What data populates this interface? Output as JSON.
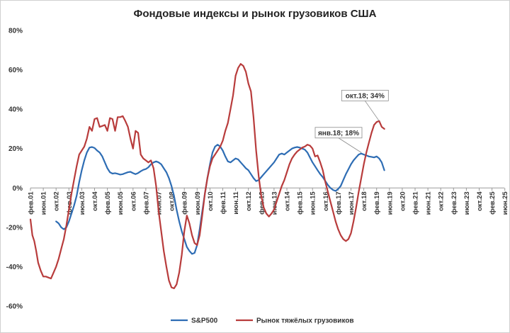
{
  "chart_data": {
    "type": "line",
    "title": "Фондовые индексы и рынок грузовиков США",
    "xlabel": "",
    "ylabel": "",
    "ylim": [
      -60,
      80
    ],
    "yticks": [
      "80%",
      "60%",
      "40%",
      "20%",
      "0%",
      "-20%",
      "-40%",
      "-60%"
    ],
    "yticks_values": [
      80,
      60,
      40,
      20,
      0,
      -20,
      -40,
      -60
    ],
    "grid": false,
    "legend_position": "bottom",
    "x_tick_labels": [
      "фев.01",
      "июн.01",
      "окт.02",
      "фев.03",
      "июн.03",
      "окт.04",
      "фев.05",
      "июн.05",
      "окт.06",
      "фев.07",
      "июн.07",
      "окт.08",
      "фев.09",
      "июн.09",
      "окт.10",
      "фев.11",
      "июн.11",
      "окт.12",
      "фев.13",
      "июн.13",
      "окт.14",
      "фев.15",
      "июн.15",
      "окт.16",
      "фев.17",
      "июн.17",
      "окт.18",
      "фев.19",
      "июн.19",
      "окт.20",
      "фев.21",
      "июн.21",
      "окт.22",
      "фев.23",
      "июн.23",
      "окт.24",
      "фев.25",
      "июн.25"
    ],
    "series": [
      {
        "name": "S&P500",
        "color": "#2E6DB4",
        "points": [
          [
            2.0,
            -17
          ],
          [
            2.2,
            -18
          ],
          [
            2.4,
            -20
          ],
          [
            2.6,
            -21
          ],
          [
            2.8,
            -20
          ],
          [
            3.0,
            -17
          ],
          [
            3.2,
            -13
          ],
          [
            3.4,
            -9
          ],
          [
            3.6,
            -4
          ],
          [
            3.8,
            3
          ],
          [
            4.0,
            9
          ],
          [
            4.2,
            14
          ],
          [
            4.4,
            18
          ],
          [
            4.6,
            20.5
          ],
          [
            4.8,
            20.8
          ],
          [
            5.0,
            20.3
          ],
          [
            5.2,
            19
          ],
          [
            5.4,
            18
          ],
          [
            5.6,
            16
          ],
          [
            5.8,
            13
          ],
          [
            6.0,
            10
          ],
          [
            6.2,
            8
          ],
          [
            6.4,
            7.3
          ],
          [
            6.6,
            7.5
          ],
          [
            6.8,
            7.2
          ],
          [
            7.0,
            6.8
          ],
          [
            7.2,
            7
          ],
          [
            7.4,
            7.5
          ],
          [
            7.6,
            8
          ],
          [
            7.8,
            8.2
          ],
          [
            8.0,
            7.5
          ],
          [
            8.2,
            7
          ],
          [
            8.4,
            7.6
          ],
          [
            8.6,
            8.5
          ],
          [
            8.8,
            9.2
          ],
          [
            9.0,
            9.6
          ],
          [
            9.2,
            10.5
          ],
          [
            9.4,
            12
          ],
          [
            9.6,
            13
          ],
          [
            9.8,
            13.5
          ],
          [
            10.0,
            13
          ],
          [
            10.2,
            12
          ],
          [
            10.4,
            10
          ],
          [
            10.6,
            8
          ],
          [
            10.8,
            5
          ],
          [
            11.0,
            1
          ],
          [
            11.2,
            -4
          ],
          [
            11.4,
            -11
          ],
          [
            11.6,
            -17
          ],
          [
            11.8,
            -22
          ],
          [
            12.0,
            -26
          ],
          [
            12.2,
            -30
          ],
          [
            12.4,
            -32
          ],
          [
            12.6,
            -33.5
          ],
          [
            12.8,
            -33
          ],
          [
            13.0,
            -29
          ],
          [
            13.2,
            -21
          ],
          [
            13.4,
            -12
          ],
          [
            13.6,
            -3
          ],
          [
            13.8,
            5
          ],
          [
            14.0,
            12
          ],
          [
            14.2,
            18
          ],
          [
            14.4,
            21
          ],
          [
            14.6,
            22
          ],
          [
            14.8,
            21
          ],
          [
            15.0,
            19
          ],
          [
            15.2,
            16
          ],
          [
            15.4,
            13.5
          ],
          [
            15.6,
            13
          ],
          [
            15.8,
            14
          ],
          [
            16.0,
            15
          ],
          [
            16.2,
            14.5
          ],
          [
            16.4,
            13
          ],
          [
            16.6,
            11.5
          ],
          [
            16.8,
            10
          ],
          [
            17.0,
            9
          ],
          [
            17.2,
            7
          ],
          [
            17.4,
            5
          ],
          [
            17.6,
            3.5
          ],
          [
            17.8,
            4
          ],
          [
            18.0,
            5.5
          ],
          [
            18.2,
            7
          ],
          [
            18.4,
            8.5
          ],
          [
            18.6,
            10
          ],
          [
            18.8,
            11.5
          ],
          [
            19.0,
            13
          ],
          [
            19.2,
            15
          ],
          [
            19.4,
            17
          ],
          [
            19.6,
            17.5
          ],
          [
            19.8,
            17
          ],
          [
            20.0,
            18
          ],
          [
            20.2,
            19
          ],
          [
            20.4,
            20
          ],
          [
            20.6,
            20.5
          ],
          [
            20.8,
            20.8
          ],
          [
            21.0,
            20.5
          ],
          [
            21.2,
            20
          ],
          [
            21.4,
            19.5
          ],
          [
            21.6,
            18
          ],
          [
            21.8,
            15.5
          ],
          [
            22.0,
            13
          ],
          [
            22.2,
            11
          ],
          [
            22.4,
            9
          ],
          [
            22.6,
            7
          ],
          [
            22.8,
            5.5
          ],
          [
            23.0,
            3.5
          ],
          [
            23.2,
            1.5
          ],
          [
            23.4,
            0
          ],
          [
            23.6,
            -1
          ],
          [
            23.8,
            -1.5
          ],
          [
            24.0,
            -0.5
          ],
          [
            24.2,
            1
          ],
          [
            24.4,
            4
          ],
          [
            24.6,
            7
          ],
          [
            24.8,
            9.5
          ],
          [
            25.0,
            12
          ],
          [
            25.2,
            14
          ],
          [
            25.4,
            15.5
          ],
          [
            25.6,
            17
          ],
          [
            25.8,
            17.5
          ],
          [
            26.0,
            17
          ],
          [
            26.2,
            16.5
          ],
          [
            26.4,
            16
          ],
          [
            26.6,
            15.8
          ],
          [
            26.8,
            15.5
          ],
          [
            27.0,
            16
          ],
          [
            27.2,
            15
          ],
          [
            27.4,
            13
          ],
          [
            27.6,
            9
          ]
        ]
      },
      {
        "name": "Рынок тяжёлых грузовиков",
        "color": "#B83C3C",
        "points": [
          [
            0.0,
            -16
          ],
          [
            0.15,
            -24
          ],
          [
            0.3,
            -27
          ],
          [
            0.45,
            -32
          ],
          [
            0.6,
            -38
          ],
          [
            0.8,
            -42
          ],
          [
            1.0,
            -45
          ],
          [
            1.2,
            -45
          ],
          [
            1.4,
            -45.5
          ],
          [
            1.6,
            -46
          ],
          [
            1.8,
            -43
          ],
          [
            2.0,
            -40
          ],
          [
            2.2,
            -36
          ],
          [
            2.4,
            -31
          ],
          [
            2.6,
            -26
          ],
          [
            2.8,
            -19
          ],
          [
            3.0,
            -11
          ],
          [
            3.2,
            -3
          ],
          [
            3.4,
            4
          ],
          [
            3.6,
            11
          ],
          [
            3.8,
            17
          ],
          [
            4.0,
            19
          ],
          [
            4.2,
            21
          ],
          [
            4.4,
            25
          ],
          [
            4.6,
            31
          ],
          [
            4.8,
            29
          ],
          [
            5.0,
            35
          ],
          [
            5.2,
            35.5
          ],
          [
            5.4,
            31
          ],
          [
            5.6,
            31.5
          ],
          [
            5.8,
            32
          ],
          [
            6.0,
            29
          ],
          [
            6.2,
            35.5
          ],
          [
            6.4,
            35
          ],
          [
            6.6,
            29
          ],
          [
            6.8,
            36
          ],
          [
            7.0,
            36
          ],
          [
            7.2,
            36.5
          ],
          [
            7.4,
            34
          ],
          [
            7.6,
            31
          ],
          [
            7.8,
            25
          ],
          [
            8.0,
            20
          ],
          [
            8.2,
            29
          ],
          [
            8.4,
            28
          ],
          [
            8.6,
            17
          ],
          [
            8.8,
            15
          ],
          [
            9.0,
            14
          ],
          [
            9.2,
            13
          ],
          [
            9.4,
            14
          ],
          [
            9.6,
            10
          ],
          [
            9.8,
            1
          ],
          [
            10.0,
            -12
          ],
          [
            10.2,
            -22
          ],
          [
            10.4,
            -32
          ],
          [
            10.6,
            -40
          ],
          [
            10.8,
            -47
          ],
          [
            11.0,
            -50.5
          ],
          [
            11.2,
            -51
          ],
          [
            11.4,
            -49
          ],
          [
            11.6,
            -43
          ],
          [
            11.8,
            -34
          ],
          [
            12.0,
            -22
          ],
          [
            12.2,
            -14
          ],
          [
            12.4,
            -18
          ],
          [
            12.6,
            -24
          ],
          [
            12.8,
            -28
          ],
          [
            13.0,
            -29
          ],
          [
            13.2,
            -24
          ],
          [
            13.4,
            -14
          ],
          [
            13.6,
            -3
          ],
          [
            13.8,
            5
          ],
          [
            14.0,
            11
          ],
          [
            14.2,
            15
          ],
          [
            14.4,
            17
          ],
          [
            14.6,
            19
          ],
          [
            14.8,
            21
          ],
          [
            15.0,
            24
          ],
          [
            15.2,
            29
          ],
          [
            15.4,
            33
          ],
          [
            15.6,
            40
          ],
          [
            15.8,
            47
          ],
          [
            16.0,
            57
          ],
          [
            16.2,
            61
          ],
          [
            16.4,
            63
          ],
          [
            16.6,
            62
          ],
          [
            16.8,
            59
          ],
          [
            17.0,
            53
          ],
          [
            17.2,
            49
          ],
          [
            17.4,
            36
          ],
          [
            17.6,
            19
          ],
          [
            17.8,
            6
          ],
          [
            18.0,
            -4
          ],
          [
            18.2,
            -10
          ],
          [
            18.4,
            -13
          ],
          [
            18.6,
            -14.5
          ],
          [
            18.8,
            -13
          ],
          [
            19.0,
            -11
          ],
          [
            19.2,
            -7
          ],
          [
            19.4,
            -3
          ],
          [
            19.6,
            1
          ],
          [
            19.8,
            4
          ],
          [
            20.0,
            8
          ],
          [
            20.2,
            12
          ],
          [
            20.4,
            15
          ],
          [
            20.6,
            17
          ],
          [
            20.8,
            18.5
          ],
          [
            21.0,
            19.5
          ],
          [
            21.2,
            20.5
          ],
          [
            21.4,
            21
          ],
          [
            21.6,
            22
          ],
          [
            21.8,
            21.5
          ],
          [
            22.0,
            20
          ],
          [
            22.2,
            16
          ],
          [
            22.4,
            16.5
          ],
          [
            22.6,
            13
          ],
          [
            22.8,
            9
          ],
          [
            23.0,
            3
          ],
          [
            23.2,
            -2
          ],
          [
            23.4,
            -7
          ],
          [
            23.6,
            -12
          ],
          [
            23.8,
            -17
          ],
          [
            24.0,
            -21
          ],
          [
            24.2,
            -24
          ],
          [
            24.4,
            -26
          ],
          [
            24.6,
            -27
          ],
          [
            24.8,
            -26
          ],
          [
            25.0,
            -23
          ],
          [
            25.2,
            -17
          ],
          [
            25.4,
            -10
          ],
          [
            25.6,
            -2
          ],
          [
            25.8,
            5
          ],
          [
            26.0,
            12
          ],
          [
            26.2,
            18
          ],
          [
            26.4,
            23
          ],
          [
            26.6,
            28
          ],
          [
            26.8,
            32
          ],
          [
            27.0,
            33.5
          ],
          [
            27.2,
            34
          ],
          [
            27.4,
            31
          ],
          [
            27.6,
            30
          ]
        ]
      }
    ],
    "annotations": [
      {
        "label": "янв.18; 18%",
        "series": 0,
        "x": 25.8,
        "y": 18
      },
      {
        "label": "окт.18; 34%",
        "series": 1,
        "x": 27.2,
        "y": 34
      }
    ]
  }
}
